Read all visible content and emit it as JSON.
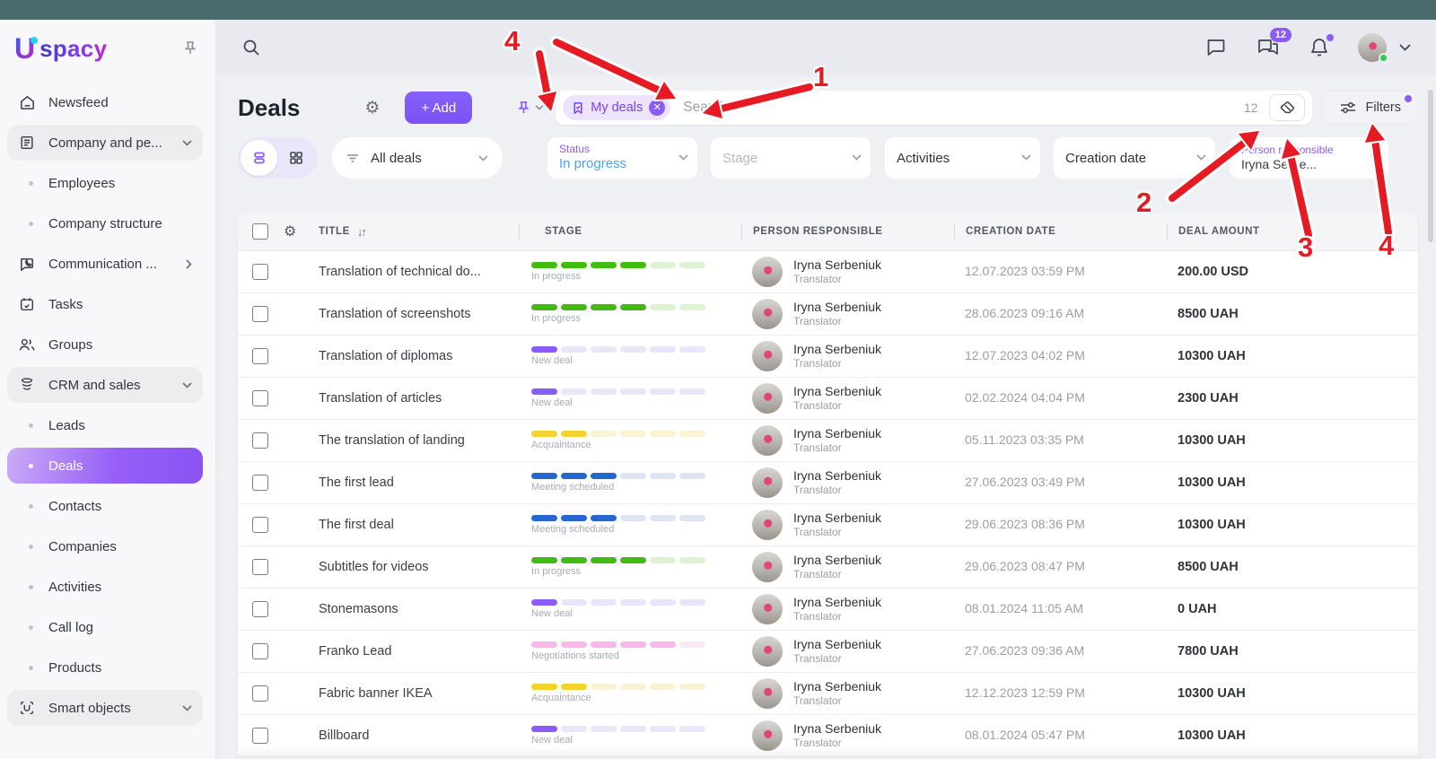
{
  "topbar": {
    "messages_badge": "12"
  },
  "sidebar": {
    "logo_text": "spacy",
    "items": [
      {
        "label": "Newsfeed"
      },
      {
        "label": "Company and pe..."
      },
      {
        "label": "Employees"
      },
      {
        "label": "Company structure"
      },
      {
        "label": "Communication ..."
      },
      {
        "label": "Tasks"
      },
      {
        "label": "Groups"
      },
      {
        "label": "CRM and sales"
      },
      {
        "label": "Leads"
      },
      {
        "label": "Deals"
      },
      {
        "label": "Contacts"
      },
      {
        "label": "Companies"
      },
      {
        "label": "Activities"
      },
      {
        "label": "Call log"
      },
      {
        "label": "Products"
      },
      {
        "label": "Smart objects"
      }
    ]
  },
  "header": {
    "title": "Deals",
    "add_button": "+ Add"
  },
  "search": {
    "chip": "My deals",
    "placeholder": "Search...",
    "results_count": "12",
    "filters_button": "Filters"
  },
  "filters": {
    "all_deals": "All deals",
    "status_label": "Status",
    "status_value": "In progress",
    "stage_placeholder": "Stage",
    "activities": "Activities",
    "creation_date": "Creation date",
    "person_label": "Person responsible",
    "person_value": "Iryna Serbe..."
  },
  "table": {
    "columns": [
      "TITLE",
      "STAGE",
      "PERSON RESPONSIBLE",
      "CREATION DATE",
      "DEAL AMOUNT"
    ],
    "stages": {
      "In progress": {
        "filled": 4,
        "total": 6,
        "color": "#41bb12",
        "track": "#def3d6"
      },
      "New deal": {
        "filled": 1,
        "total": 6,
        "color": "#8b5cf6",
        "track": "#ebe5f9"
      },
      "Acquaintance": {
        "filled": 2,
        "total": 6,
        "color": "#f4d42a",
        "track": "#faf3d2"
      },
      "Meeting scheduled": {
        "filled": 3,
        "total": 6,
        "color": "#2766d1",
        "track": "#dde4f4"
      },
      "Negotiations started": {
        "filled": 5,
        "total": 6,
        "color": "#f6b9ea",
        "track": "#fbe9f7"
      }
    },
    "rows": [
      {
        "title": "Translation of technical do...",
        "stage": "In progress",
        "person": {
          "name": "Iryna Serbeniuk",
          "role": "Translator"
        },
        "date": "12.07.2023 03:59 PM",
        "amount": "200.00 USD"
      },
      {
        "title": "Translation of screenshots",
        "stage": "In progress",
        "person": {
          "name": "Iryna Serbeniuk",
          "role": "Translator"
        },
        "date": "28.06.2023 09:16 AM",
        "amount": "8500 UAH"
      },
      {
        "title": "Translation of diplomas",
        "stage": "New deal",
        "person": {
          "name": "Iryna Serbeniuk",
          "role": "Translator"
        },
        "date": "12.07.2023 04:02 PM",
        "amount": "10300 UAH"
      },
      {
        "title": "Translation of articles",
        "stage": "New deal",
        "person": {
          "name": "Iryna Serbeniuk",
          "role": "Translator"
        },
        "date": "02.02.2024 04:04 PM",
        "amount": "2300 UAH"
      },
      {
        "title": "The translation of landing",
        "stage": "Acquaintance",
        "person": {
          "name": "Iryna Serbeniuk",
          "role": "Translator"
        },
        "date": "05.11.2023 03:35 PM",
        "amount": "10300 UAH"
      },
      {
        "title": "The first lead",
        "stage": "Meeting scheduled",
        "person": {
          "name": "Iryna Serbeniuk",
          "role": "Translator"
        },
        "date": "27.06.2023 03:49 PM",
        "amount": "10300 UAH"
      },
      {
        "title": "The first deal",
        "stage": "Meeting scheduled",
        "person": {
          "name": "Iryna Serbeniuk",
          "role": "Translator"
        },
        "date": "29.06.2023 08:36 PM",
        "amount": "10300 UAH"
      },
      {
        "title": "Subtitles for videos",
        "stage": "In progress",
        "person": {
          "name": "Iryna Serbeniuk",
          "role": "Translator"
        },
        "date": "29.06.2023 08:47 PM",
        "amount": "8500 UAH"
      },
      {
        "title": "Stonemasons",
        "stage": "New deal",
        "person": {
          "name": "Iryna Serbeniuk",
          "role": "Translator"
        },
        "date": "08.01.2024 11:05 AM",
        "amount": "0 UAH"
      },
      {
        "title": "Franko Lead",
        "stage": "Negotiations started",
        "person": {
          "name": "Iryna Serbeniuk",
          "role": "Translator"
        },
        "date": "27.06.2023 09:36 AM",
        "amount": "7800 UAH"
      },
      {
        "title": "Fabric banner IKEA",
        "stage": "Acquaintance",
        "person": {
          "name": "Iryna Serbeniuk",
          "role": "Translator"
        },
        "date": "12.12.2023 12:59 PM",
        "amount": "10300 UAH"
      },
      {
        "title": "Billboard",
        "stage": "New deal",
        "person": {
          "name": "Iryna Serbeniuk",
          "role": "Translator"
        },
        "date": "08.01.2024 05:47 PM",
        "amount": "10300 UAH"
      }
    ]
  },
  "annotations": {
    "n1": "1",
    "n2": "2",
    "n3": "3",
    "n4_top": "4",
    "n4_right": "4"
  },
  "colors": {
    "accent": "#8b5cf6",
    "add_button": "#7c5af8",
    "arrow_red": "#e51a22",
    "status_value": "#4aa3f5",
    "top_strip": "#4b6a6d",
    "active_gradient_end": "#8a52f2"
  }
}
